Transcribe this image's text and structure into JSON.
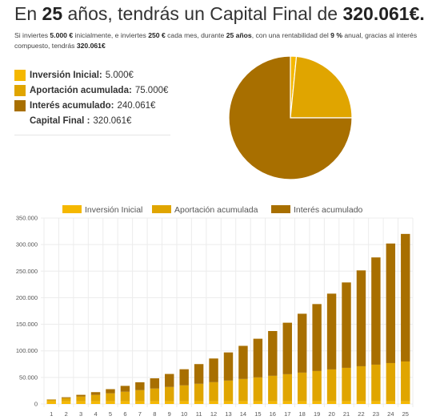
{
  "header": {
    "pre": "En",
    "years": "25",
    "mid": "años, tendrás un Capital Final de",
    "total": "320.061€."
  },
  "summary": {
    "t1": "Si inviertes",
    "initial": "5.000 €",
    "t2": "inicialmente, e inviertes",
    "monthly": "250 €",
    "t3": "cada mes, durante",
    "years": "25 años",
    "t4": ", con una rentabilidad del",
    "rate": "9 %",
    "t5": "anual, gracias al interés compuesto, tendrás",
    "final": "320.061",
    "t6": "€"
  },
  "legend_top": [
    {
      "label": "Inversión Inicial:",
      "value": "5.000€",
      "color": "#F5B800"
    },
    {
      "label": "Aportación acumulada:",
      "value": "75.000€",
      "color": "#E0A500"
    },
    {
      "label": "Interés acumulado:",
      "value": "240.061€",
      "color": "#A86F00"
    }
  ],
  "total_row": {
    "label": "Capital Final :",
    "value": "320.061€"
  },
  "colors": {
    "initial": "#F5B800",
    "contrib": "#E0A500",
    "interest": "#A86F00",
    "grid": "#ececec",
    "tick": "#555555"
  },
  "chart_data": [
    {
      "type": "pie",
      "categories": [
        "Inversión Inicial",
        "Aportación acumulada",
        "Interés acumulado"
      ],
      "values": [
        5000,
        75000,
        240061
      ]
    },
    {
      "type": "bar",
      "stacked": true,
      "categories": [
        "1",
        "2",
        "3",
        "4",
        "5",
        "6",
        "7",
        "8",
        "9",
        "10",
        "11",
        "12",
        "13",
        "14",
        "15",
        "16",
        "17",
        "18",
        "19",
        "20",
        "21",
        "22",
        "23",
        "24",
        "25"
      ],
      "series": [
        {
          "name": "Inversión Inicial",
          "values": [
            5000,
            5000,
            5000,
            5000,
            5000,
            5000,
            5000,
            5000,
            5000,
            5000,
            5000,
            5000,
            5000,
            5000,
            5000,
            5000,
            5000,
            5000,
            5000,
            5000,
            5000,
            5000,
            5000,
            5000,
            5000
          ]
        },
        {
          "name": "Aportación acumulada",
          "values": [
            3000,
            6000,
            9000,
            12000,
            15000,
            18000,
            21000,
            24000,
            27000,
            30000,
            33000,
            36000,
            39000,
            42000,
            45000,
            48000,
            51000,
            54000,
            57000,
            60000,
            63000,
            66000,
            69000,
            72000,
            75000
          ]
        },
        {
          "name": "Interés acumulado",
          "values": [
            594,
            1653,
            3200,
            5263,
            7874,
            11064,
            14869,
            19327,
            24481,
            30376,
            37062,
            44589,
            53013,
            62395,
            72799,
            84291,
            96947,
            110839,
            126046,
            142655,
            160756,
            180446,
            201829,
            225013,
            240061
          ]
        }
      ],
      "yticks": [
        "0",
        "50.000",
        "100.000",
        "150.000",
        "200.000",
        "250.000",
        "300.000",
        "350.000"
      ],
      "ylim": [
        0,
        350000
      ],
      "legend": "top"
    }
  ]
}
